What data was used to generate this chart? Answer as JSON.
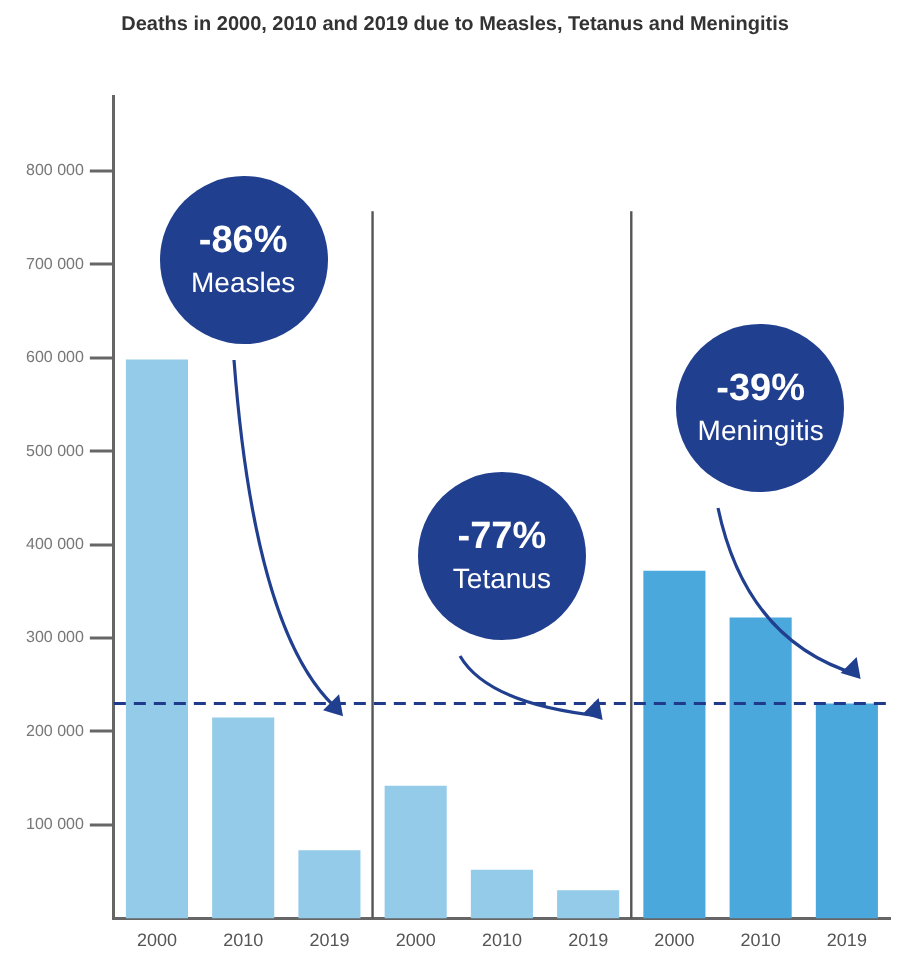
{
  "chart_data": {
    "type": "bar",
    "title": "Deaths in 2000, 2010 and 2019 due to Measles, Tetanus and Meningitis",
    "categories": [
      "2000",
      "2010",
      "2019",
      "2000",
      "2010",
      "2019",
      "2000",
      "2010",
      "2019"
    ],
    "values": [
      598000,
      215000,
      73000,
      142000,
      52000,
      30000,
      372000,
      322000,
      230000
    ],
    "colors": [
      "#93cbe9",
      "#93cbe9",
      "#93cbe9",
      "#93cbe9",
      "#93cbe9",
      "#93cbe9",
      "#4aa8dc",
      "#4aa8dc",
      "#4aa8dc"
    ],
    "ylim": [
      0,
      880000
    ],
    "yticks": [
      {
        "value": 100000,
        "label": "100 000"
      },
      {
        "value": 200000,
        "label": "200 000"
      },
      {
        "value": 300000,
        "label": "300 000"
      },
      {
        "value": 400000,
        "label": "400 000"
      },
      {
        "value": 500000,
        "label": "500 000"
      },
      {
        "value": 600000,
        "label": "600 000"
      },
      {
        "value": 700000,
        "label": "700 000"
      },
      {
        "value": 800000,
        "label": "800 000"
      }
    ],
    "grid": false,
    "legend": false,
    "ref_lines": [
      {
        "axis": "y",
        "value": 230000,
        "color": "#1f3a8a",
        "line_style": "dashed"
      }
    ],
    "annotations": [
      "-86%\nMeasles",
      "-77%\nTetanus",
      "-39%\nMeningitis"
    ]
  }
}
